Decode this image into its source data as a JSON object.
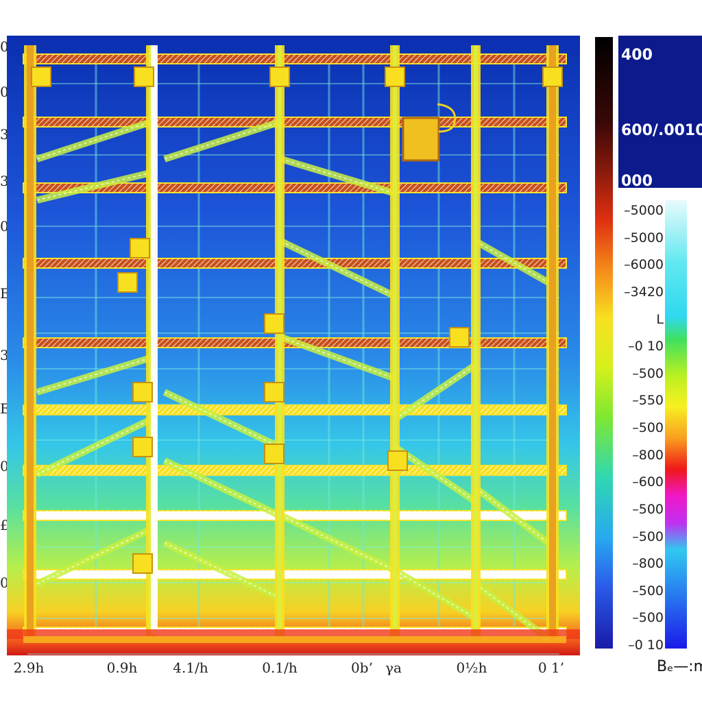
{
  "chart_data": {
    "type": "heatmap",
    "title": "",
    "xlabel": "",
    "ylabel": "",
    "x_tick_labels": [
      "2.9h",
      "0.9h",
      "4.1/h",
      "0.1/h",
      "0b’",
      "γa",
      "0½h",
      "0 1’"
    ],
    "y_tick_labels": [
      "0",
      "0",
      "3",
      "3",
      "0",
      "E",
      "3",
      "E",
      "0",
      "£",
      "0"
    ],
    "colorbar_outer": {
      "tick_labels": [
        "400",
        "600/.0010",
        "000"
      ]
    },
    "colorbar_inner": {
      "tick_labels": [
        "5000",
        "5000",
        "6000",
        "3420",
        "L",
        "0 10",
        "500",
        "550",
        "500",
        "800",
        "600",
        "500",
        "500",
        "800",
        "500",
        "500",
        "0 10"
      ],
      "label": "Bₑ—:m"
    },
    "grid": false
  },
  "colors": {
    "steel_outline": "#f8e020",
    "steel_inner": "#e89a20",
    "bracing": "#c8f040",
    "white_member": "#ffffff",
    "rust_beam": "#c8501a"
  }
}
